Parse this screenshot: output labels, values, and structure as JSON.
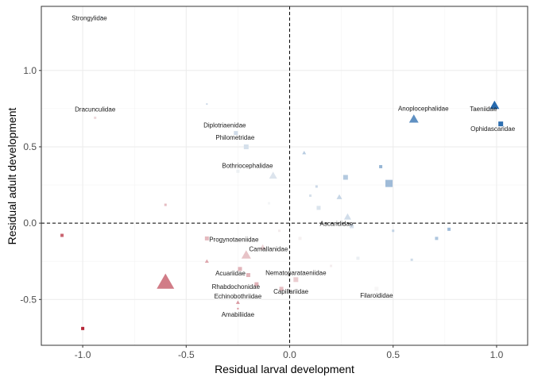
{
  "chart_data": {
    "type": "scatter",
    "xlabel": "Residual larval development",
    "ylabel": "Residual adult development",
    "xlim": [
      -1.2,
      1.15
    ],
    "ylim": [
      -0.8,
      1.42
    ],
    "x_ticks": [
      -1.0,
      -0.5,
      0.0,
      0.5,
      1.0
    ],
    "x_tick_labels": [
      "-1.0",
      "-0.5",
      "0.0",
      "0.5",
      "1.0"
    ],
    "y_ticks": [
      -0.5,
      0.0,
      0.5,
      1.0
    ],
    "y_tick_labels": [
      "-0.5",
      "0.0",
      "0.5",
      "1.0"
    ],
    "reference_lines": {
      "x": 0,
      "y": 0,
      "style": "dashed"
    },
    "grid": true,
    "legend": "none",
    "color_scale": {
      "low": "#b2182b",
      "mid": "#f7f7f7",
      "high": "#2166ac"
    },
    "points": [
      {
        "x": -0.91,
        "y": 1.35,
        "shape": "square",
        "size": 2,
        "label": "Strongylidae"
      },
      {
        "x": -0.94,
        "y": 0.69,
        "shape": "square",
        "size": 3,
        "label": "Dracunculidae"
      },
      {
        "x": -1.1,
        "y": -0.08,
        "shape": "square",
        "size": 4,
        "label": ""
      },
      {
        "x": -1.0,
        "y": -0.69,
        "shape": "square",
        "size": 4,
        "label": ""
      },
      {
        "x": -0.6,
        "y": -0.39,
        "shape": "triangle",
        "size": 22,
        "label": ""
      },
      {
        "x": -0.26,
        "y": 0.59,
        "shape": "square",
        "size": 5,
        "label": "Diplotriaenidae"
      },
      {
        "x": -0.21,
        "y": 0.5,
        "shape": "square",
        "size": 6,
        "label": "Philometridae"
      },
      {
        "x": -0.25,
        "y": 0.34,
        "shape": "square",
        "size": 4,
        "label": "Bothriocephalidae"
      },
      {
        "x": -0.08,
        "y": 0.31,
        "shape": "triangle",
        "size": 10,
        "label": ""
      },
      {
        "x": -0.4,
        "y": -0.1,
        "shape": "square",
        "size": 5,
        "label": "Progynotaeniidae"
      },
      {
        "x": -0.21,
        "y": -0.21,
        "shape": "triangle",
        "size": 12,
        "label": "Camallanidae"
      },
      {
        "x": -0.13,
        "y": -0.16,
        "shape": "triangle",
        "size": 8,
        "label": ""
      },
      {
        "x": -0.24,
        "y": -0.3,
        "shape": "square",
        "size": 5,
        "label": "Acuariidae"
      },
      {
        "x": -0.2,
        "y": -0.34,
        "shape": "square",
        "size": 5,
        "label": ""
      },
      {
        "x": -0.16,
        "y": -0.4,
        "shape": "square",
        "size": 5,
        "label": "Rhabdochonidae"
      },
      {
        "x": -0.4,
        "y": -0.25,
        "shape": "triangle",
        "size": 5,
        "label": ""
      },
      {
        "x": -0.25,
        "y": -0.52,
        "shape": "triangle",
        "size": 5,
        "label": "Echinobothriidae"
      },
      {
        "x": -0.25,
        "y": -0.56,
        "shape": "square",
        "size": 2,
        "label": "Amabiliidae"
      },
      {
        "x": 0.03,
        "y": -0.37,
        "shape": "square",
        "size": 6,
        "label": "Nematoparataeniidae"
      },
      {
        "x": -0.04,
        "y": -0.43,
        "shape": "square",
        "size": 5,
        "label": "Capillariidae"
      },
      {
        "x": 0.6,
        "y": 0.68,
        "shape": "triangle",
        "size": 12,
        "label": "Anoplocephalidae"
      },
      {
        "x": 0.99,
        "y": 0.77,
        "shape": "triangle",
        "size": 12,
        "label": "Taeniidae"
      },
      {
        "x": 1.02,
        "y": 0.65,
        "shape": "square",
        "size": 6,
        "label": "Ophidascaridae"
      },
      {
        "x": 0.48,
        "y": 0.26,
        "shape": "square",
        "size": 9,
        "label": ""
      },
      {
        "x": 0.44,
        "y": 0.37,
        "shape": "square",
        "size": 4,
        "label": ""
      },
      {
        "x": 0.27,
        "y": 0.3,
        "shape": "square",
        "size": 6,
        "label": ""
      },
      {
        "x": 0.24,
        "y": 0.17,
        "shape": "triangle",
        "size": 7,
        "label": ""
      },
      {
        "x": 0.14,
        "y": 0.1,
        "shape": "square",
        "size": 5,
        "label": ""
      },
      {
        "x": 0.28,
        "y": 0.04,
        "shape": "triangle",
        "size": 9,
        "label": "Ascarididae"
      },
      {
        "x": 0.3,
        "y": -0.02,
        "shape": "square",
        "size": 5,
        "label": ""
      },
      {
        "x": 0.77,
        "y": -0.04,
        "shape": "square",
        "size": 4,
        "label": ""
      },
      {
        "x": 0.71,
        "y": -0.1,
        "shape": "square",
        "size": 4,
        "label": ""
      },
      {
        "x": 0.5,
        "y": -0.05,
        "shape": "square",
        "size": 3,
        "label": ""
      },
      {
        "x": 0.42,
        "y": -0.43,
        "shape": "square",
        "size": 5,
        "label": "Filaroididae"
      },
      {
        "x": 0.33,
        "y": -0.23,
        "shape": "square",
        "size": 4,
        "label": ""
      },
      {
        "x": 0.07,
        "y": 0.46,
        "shape": "triangle",
        "size": 5,
        "label": ""
      },
      {
        "x": 0.13,
        "y": 0.24,
        "shape": "square",
        "size": 3,
        "label": ""
      },
      {
        "x": 0.1,
        "y": 0.18,
        "shape": "square",
        "size": 3,
        "label": ""
      },
      {
        "x": -0.6,
        "y": 0.12,
        "shape": "square",
        "size": 3,
        "label": ""
      },
      {
        "x": -0.4,
        "y": 0.78,
        "shape": "square",
        "size": 2,
        "label": ""
      },
      {
        "x": -0.1,
        "y": 0.13,
        "shape": "square",
        "size": 3,
        "label": ""
      },
      {
        "x": 0.05,
        "y": -0.1,
        "shape": "square",
        "size": 4,
        "label": ""
      },
      {
        "x": -0.05,
        "y": -0.05,
        "shape": "square",
        "size": 3,
        "label": ""
      },
      {
        "x": 0.2,
        "y": -0.28,
        "shape": "square",
        "size": 3,
        "label": ""
      },
      {
        "x": 0.59,
        "y": -0.24,
        "shape": "square",
        "size": 3,
        "label": ""
      }
    ]
  }
}
